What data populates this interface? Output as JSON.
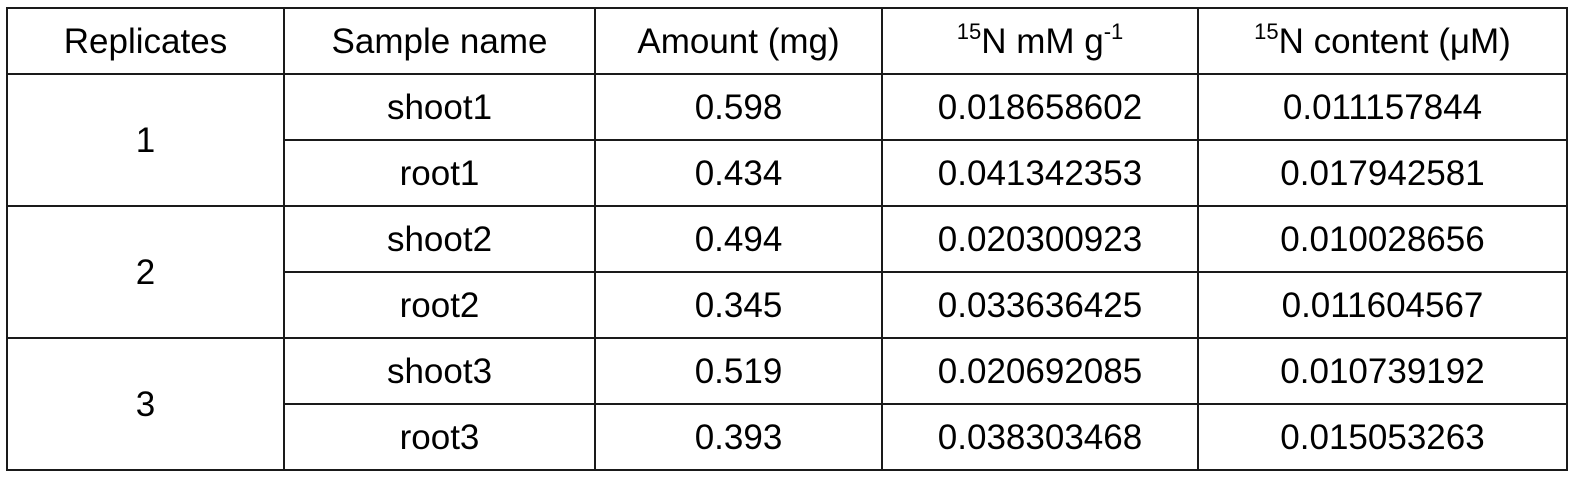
{
  "table": {
    "headers": {
      "replicates": "Replicates",
      "sample_name": "Sample name",
      "amount": "Amount (mg)",
      "n15_mm_sup": "15",
      "n15_mm_main": "N mM g",
      "n15_mm_exp": "-1",
      "n15_content_sup": "15",
      "n15_content_main": "N content (μM)"
    },
    "groups": [
      {
        "replicate": "1",
        "rows": [
          {
            "sample": "shoot1",
            "amount": "0.598",
            "n15_mm": "0.018658602",
            "n15_content": "0.011157844"
          },
          {
            "sample": "root1",
            "amount": "0.434",
            "n15_mm": "0.041342353",
            "n15_content": "0.017942581"
          }
        ]
      },
      {
        "replicate": "2",
        "rows": [
          {
            "sample": "shoot2",
            "amount": "0.494",
            "n15_mm": "0.020300923",
            "n15_content": "0.010028656"
          },
          {
            "sample": "root2",
            "amount": "0.345",
            "n15_mm": "0.033636425",
            "n15_content": "0.011604567"
          }
        ]
      },
      {
        "replicate": "3",
        "rows": [
          {
            "sample": "shoot3",
            "amount": "0.519",
            "n15_mm": "0.020692085",
            "n15_content": "0.010739192"
          },
          {
            "sample": "root3",
            "amount": "0.393",
            "n15_mm": "0.038303468",
            "n15_content": "0.015053263"
          }
        ]
      }
    ]
  }
}
